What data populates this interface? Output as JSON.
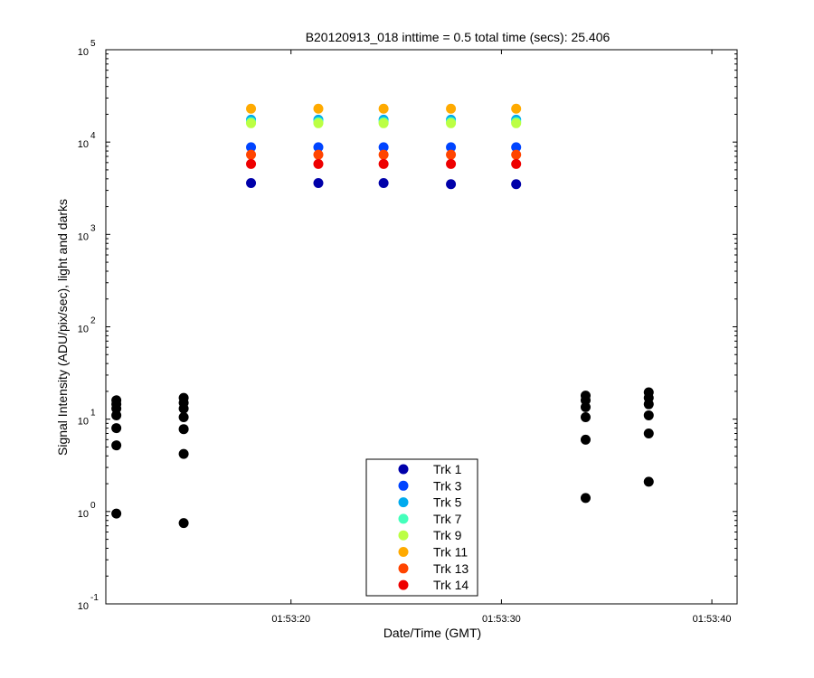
{
  "chart_data": {
    "type": "scatter",
    "title": "B20120913_018 inttime = 0.5 total time (secs): 25.406",
    "xlabel": "Date/Time (GMT)",
    "ylabel": "Signal Intensity (ADU/pix/sec), light and darks",
    "y_scale": "log",
    "ylim": [
      0.1,
      100000
    ],
    "xlim": [
      "01:53:11.2",
      "01:53:41.2"
    ],
    "x_ticks": [
      "01:53:20",
      "01:53:30",
      "01:53:40"
    ],
    "y_ticks": [
      {
        "base": "10",
        "exp": "-1"
      },
      {
        "base": "10",
        "exp": "0"
      },
      {
        "base": "10",
        "exp": "1"
      },
      {
        "base": "10",
        "exp": "2"
      },
      {
        "base": "10",
        "exp": "3"
      },
      {
        "base": "10",
        "exp": "4"
      },
      {
        "base": "10",
        "exp": "5"
      }
    ],
    "grid": false,
    "legend_position": "bottom-center",
    "light_x": [
      "01:53:18.1",
      "01:53:21.3",
      "01:53:24.4",
      "01:53:27.6",
      "01:53:30.7"
    ],
    "series": [
      {
        "name": "Trk 1",
        "color": "#0000AA",
        "values": [
          3600,
          3600,
          3600,
          3500,
          3500
        ]
      },
      {
        "name": "Trk 3",
        "color": "#0044FF",
        "values": [
          8800,
          8800,
          8800,
          8800,
          8800
        ]
      },
      {
        "name": "Trk 5",
        "color": "#00AAEE",
        "values": [
          17500,
          17500,
          17500,
          17500,
          17500
        ]
      },
      {
        "name": "Trk 7",
        "color": "#44FFBB",
        "values": [
          16500,
          16500,
          16500,
          16500,
          16500
        ]
      },
      {
        "name": "Trk 9",
        "color": "#BBFF44",
        "values": [
          16000,
          16000,
          16000,
          16000,
          16000
        ]
      },
      {
        "name": "Trk 11",
        "color": "#FFAA00",
        "values": [
          23000,
          23000,
          23000,
          23000,
          23000
        ]
      },
      {
        "name": "Trk 13",
        "color": "#FF4400",
        "values": [
          7300,
          7300,
          7300,
          7300,
          7300
        ]
      },
      {
        "name": "Trk 14",
        "color": "#EE0000",
        "values": [
          5800,
          5800,
          5800,
          5800,
          5800
        ]
      }
    ],
    "darks": {
      "color": "#000000",
      "groups": [
        {
          "x": "01:53:11.7",
          "values": [
            16,
            14.5,
            13,
            11,
            8,
            5.2,
            0.95
          ]
        },
        {
          "x": "01:53:14.9",
          "values": [
            17,
            15,
            13,
            10.5,
            7.8,
            4.2,
            0.75
          ]
        },
        {
          "x": "01:53:34.0",
          "values": [
            18,
            16,
            13.5,
            10.5,
            6,
            1.4
          ]
        },
        {
          "x": "01:53:37.0",
          "values": [
            19.5,
            17,
            14.5,
            11,
            7,
            2.1
          ]
        }
      ]
    }
  }
}
